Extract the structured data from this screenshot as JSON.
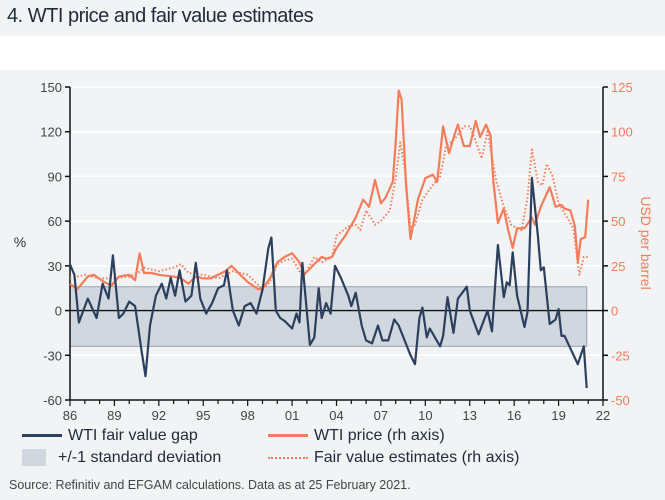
{
  "title": "4. WTI price and fair value estimates",
  "source": "Source: Refinitiv and EFGAM calculations. Data as at 25 February 2021.",
  "colors": {
    "gap": "#2b3f5e",
    "price": "#f47c5a",
    "band": "#d0d7de",
    "band_edge": "#9aa4ad",
    "background": "#f2f3f5"
  },
  "legend": {
    "gap": "WTI fair value gap",
    "band": "+/-1 standard deviation",
    "price": "WTI price (rh axis)",
    "fair": "Fair value estimates (rh axis)"
  },
  "chart_data": {
    "type": "line",
    "title": "4. WTI price and fair value estimates",
    "ylabel_left": "%",
    "ylabel_right": "USD per barrel",
    "xlim": [
      1986,
      2022
    ],
    "ylim_left": [
      -60,
      150
    ],
    "ylim_right": [
      -50,
      125
    ],
    "x_ticks": [
      "86",
      "89",
      "92",
      "95",
      "98",
      "01",
      "04",
      "07",
      "10",
      "13",
      "16",
      "19",
      "22"
    ],
    "y_ticks_left": [
      "150",
      "120",
      "90",
      "60",
      "30",
      "0",
      "-30",
      "-60"
    ],
    "y_ticks_right": [
      "125",
      "100",
      "75",
      "50",
      "25",
      "0",
      "-25",
      "-50"
    ],
    "grid": "horizontal",
    "legend_position": "bottom",
    "band": {
      "name": "+/-1 standard deviation",
      "upper": 16,
      "lower": -24,
      "x": [
        1986.0,
        2020.9
      ]
    },
    "series": [
      {
        "name": "WTI fair value gap",
        "axis": "left",
        "style": "solid",
        "points": [
          [
            1986.0,
            31
          ],
          [
            1986.3,
            24
          ],
          [
            1986.6,
            -8
          ],
          [
            1987.2,
            8
          ],
          [
            1987.8,
            -5
          ],
          [
            1988.2,
            18
          ],
          [
            1988.6,
            8
          ],
          [
            1988.9,
            37
          ],
          [
            1989.3,
            -5
          ],
          [
            1989.6,
            -2
          ],
          [
            1990.0,
            6
          ],
          [
            1990.4,
            3
          ],
          [
            1990.8,
            -25
          ],
          [
            1991.1,
            -44
          ],
          [
            1991.4,
            -10
          ],
          [
            1991.8,
            10
          ],
          [
            1992.2,
            18
          ],
          [
            1992.5,
            8
          ],
          [
            1992.8,
            22
          ],
          [
            1993.1,
            10
          ],
          [
            1993.4,
            27
          ],
          [
            1993.8,
            6
          ],
          [
            1994.2,
            10
          ],
          [
            1994.5,
            32
          ],
          [
            1994.8,
            8
          ],
          [
            1995.2,
            -2
          ],
          [
            1995.6,
            5
          ],
          [
            1996.0,
            15
          ],
          [
            1996.4,
            17
          ],
          [
            1996.6,
            27
          ],
          [
            1997.0,
            0
          ],
          [
            1997.4,
            -10
          ],
          [
            1997.8,
            3
          ],
          [
            1998.2,
            5
          ],
          [
            1998.6,
            -2
          ],
          [
            1999.0,
            14
          ],
          [
            1999.4,
            42
          ],
          [
            1999.6,
            49
          ],
          [
            1999.9,
            0
          ],
          [
            2000.2,
            -5
          ],
          [
            2000.5,
            -7
          ],
          [
            2001.0,
            -12
          ],
          [
            2001.3,
            -2
          ],
          [
            2001.5,
            -8
          ],
          [
            2001.7,
            32
          ],
          [
            2002.2,
            -23
          ],
          [
            2002.5,
            -18
          ],
          [
            2002.8,
            15
          ],
          [
            2003.0,
            -5
          ],
          [
            2003.3,
            5
          ],
          [
            2003.6,
            -2
          ],
          [
            2003.9,
            30
          ],
          [
            2004.3,
            22
          ],
          [
            2004.8,
            10
          ],
          [
            2005.0,
            3
          ],
          [
            2005.3,
            12
          ],
          [
            2005.7,
            -10
          ],
          [
            2006.0,
            -20
          ],
          [
            2006.4,
            -22
          ],
          [
            2006.8,
            -10
          ],
          [
            2007.1,
            -20
          ],
          [
            2007.5,
            -20
          ],
          [
            2007.9,
            -6
          ],
          [
            2008.2,
            -10
          ],
          [
            2008.6,
            -20
          ],
          [
            2009.0,
            -30
          ],
          [
            2009.3,
            -36
          ],
          [
            2009.6,
            -5
          ],
          [
            2009.8,
            2
          ],
          [
            2010.1,
            -18
          ],
          [
            2010.3,
            -12
          ],
          [
            2011.0,
            -24
          ],
          [
            2011.2,
            -17
          ],
          [
            2011.5,
            9
          ],
          [
            2011.9,
            -15
          ],
          [
            2012.2,
            8
          ],
          [
            2012.8,
            16
          ],
          [
            2013.0,
            0
          ],
          [
            2013.6,
            -16
          ],
          [
            2014.2,
            0
          ],
          [
            2014.5,
            -14
          ],
          [
            2014.9,
            44
          ],
          [
            2015.3,
            9
          ],
          [
            2015.5,
            19
          ],
          [
            2015.7,
            17
          ],
          [
            2015.9,
            39
          ],
          [
            2016.2,
            10
          ],
          [
            2016.7,
            -11
          ],
          [
            2016.9,
            -1
          ],
          [
            2017.2,
            89
          ],
          [
            2017.6,
            50
          ],
          [
            2017.8,
            27
          ],
          [
            2018.0,
            29
          ],
          [
            2018.4,
            -9
          ],
          [
            2018.8,
            -6
          ],
          [
            2019.0,
            1
          ],
          [
            2019.2,
            -17
          ],
          [
            2019.4,
            -17
          ],
          [
            2020.3,
            -36
          ],
          [
            2020.7,
            -24
          ],
          [
            2020.9,
            -52
          ]
        ]
      },
      {
        "name": "WTI price (rh axis)",
        "axis": "right",
        "style": "solid",
        "points": [
          [
            1986.0,
            15
          ],
          [
            1986.5,
            12
          ],
          [
            1987.2,
            19
          ],
          [
            1987.6,
            20
          ],
          [
            1988.3,
            16
          ],
          [
            1988.8,
            14
          ],
          [
            1989.3,
            19
          ],
          [
            1990.0,
            20
          ],
          [
            1990.4,
            17
          ],
          [
            1990.7,
            32
          ],
          [
            1991.0,
            21
          ],
          [
            1991.5,
            21
          ],
          [
            1992.0,
            20
          ],
          [
            1993.0,
            19
          ],
          [
            1993.5,
            18
          ],
          [
            1994.0,
            15
          ],
          [
            1994.5,
            19
          ],
          [
            1995.0,
            18
          ],
          [
            1995.5,
            18
          ],
          [
            1996.0,
            20
          ],
          [
            1996.5,
            22
          ],
          [
            1996.9,
            25
          ],
          [
            1997.5,
            20
          ],
          [
            1998.0,
            16
          ],
          [
            1998.7,
            12
          ],
          [
            1999.0,
            12
          ],
          [
            1999.5,
            18
          ],
          [
            2000.0,
            27
          ],
          [
            2000.5,
            30
          ],
          [
            2001.0,
            32
          ],
          [
            2001.5,
            27
          ],
          [
            2001.8,
            20
          ],
          [
            2002.5,
            26
          ],
          [
            2003.0,
            30
          ],
          [
            2003.3,
            29
          ],
          [
            2003.7,
            30
          ],
          [
            2004.0,
            35
          ],
          [
            2004.6,
            42
          ],
          [
            2005.3,
            52
          ],
          [
            2005.8,
            62
          ],
          [
            2006.2,
            58
          ],
          [
            2006.6,
            73
          ],
          [
            2007.0,
            60
          ],
          [
            2007.3,
            63
          ],
          [
            2007.8,
            72
          ],
          [
            2008.0,
            94
          ],
          [
            2008.2,
            123
          ],
          [
            2008.4,
            118
          ],
          [
            2008.7,
            70
          ],
          [
            2009.0,
            40
          ],
          [
            2009.5,
            62
          ],
          [
            2010.0,
            74
          ],
          [
            2010.5,
            76
          ],
          [
            2010.8,
            72
          ],
          [
            2011.2,
            103
          ],
          [
            2011.6,
            88
          ],
          [
            2012.0,
            99
          ],
          [
            2012.2,
            104
          ],
          [
            2012.6,
            92
          ],
          [
            2013.0,
            92
          ],
          [
            2013.4,
            106
          ],
          [
            2013.7,
            97
          ],
          [
            2014.1,
            104
          ],
          [
            2014.4,
            98
          ],
          [
            2014.6,
            72
          ],
          [
            2014.9,
            49
          ],
          [
            2015.3,
            57
          ],
          [
            2015.6,
            45
          ],
          [
            2015.9,
            35
          ],
          [
            2016.2,
            46
          ],
          [
            2016.7,
            46
          ],
          [
            2017.2,
            52
          ],
          [
            2017.4,
            48
          ],
          [
            2017.8,
            58
          ],
          [
            2018.4,
            69
          ],
          [
            2018.8,
            58
          ],
          [
            2019.2,
            59
          ],
          [
            2019.4,
            57
          ],
          [
            2019.8,
            56
          ],
          [
            2020.1,
            47
          ],
          [
            2020.3,
            27
          ],
          [
            2020.5,
            40
          ],
          [
            2020.8,
            41
          ],
          [
            2021.0,
            62
          ]
        ]
      },
      {
        "name": "Fair value estimates (rh axis)",
        "axis": "right",
        "style": "dotted",
        "points": [
          [
            1986.0,
            18
          ],
          [
            1987.0,
            20
          ],
          [
            1988.0,
            18
          ],
          [
            1989.0,
            18
          ],
          [
            1990.0,
            19
          ],
          [
            1990.8,
            22
          ],
          [
            1991.0,
            24
          ],
          [
            1992.0,
            22
          ],
          [
            1993.0,
            24
          ],
          [
            1993.5,
            26
          ],
          [
            1994.0,
            21
          ],
          [
            1995.0,
            20
          ],
          [
            1996.0,
            18
          ],
          [
            1997.0,
            22
          ],
          [
            1998.0,
            20
          ],
          [
            1999.0,
            12
          ],
          [
            1999.5,
            16
          ],
          [
            2000.0,
            26
          ],
          [
            2000.5,
            28
          ],
          [
            2001.0,
            29
          ],
          [
            2001.5,
            22
          ],
          [
            2002.0,
            22
          ],
          [
            2002.5,
            30
          ],
          [
            2003.0,
            27
          ],
          [
            2003.7,
            30
          ],
          [
            2004.0,
            42
          ],
          [
            2004.8,
            47
          ],
          [
            2005.3,
            48
          ],
          [
            2005.6,
            45
          ],
          [
            2006.0,
            56
          ],
          [
            2006.6,
            48
          ],
          [
            2007.0,
            50
          ],
          [
            2007.6,
            56
          ],
          [
            2008.0,
            74
          ],
          [
            2008.3,
            94
          ],
          [
            2008.6,
            80
          ],
          [
            2009.0,
            46
          ],
          [
            2009.3,
            48
          ],
          [
            2009.8,
            62
          ],
          [
            2010.5,
            70
          ],
          [
            2011.0,
            75
          ],
          [
            2011.4,
            92
          ],
          [
            2012.0,
            96
          ],
          [
            2012.6,
            103
          ],
          [
            2013.0,
            103
          ],
          [
            2013.4,
            95
          ],
          [
            2013.8,
            85
          ],
          [
            2014.2,
            100
          ],
          [
            2014.8,
            72
          ],
          [
            2015.3,
            58
          ],
          [
            2015.8,
            48
          ],
          [
            2016.0,
            47
          ],
          [
            2016.5,
            45
          ],
          [
            2016.9,
            63
          ],
          [
            2017.2,
            90
          ],
          [
            2017.6,
            72
          ],
          [
            2017.9,
            70
          ],
          [
            2018.2,
            82
          ],
          [
            2018.6,
            75
          ],
          [
            2019.0,
            60
          ],
          [
            2019.5,
            53
          ],
          [
            2020.0,
            46
          ],
          [
            2020.4,
            20
          ],
          [
            2020.7,
            30
          ],
          [
            2021.0,
            30
          ]
        ]
      }
    ]
  }
}
